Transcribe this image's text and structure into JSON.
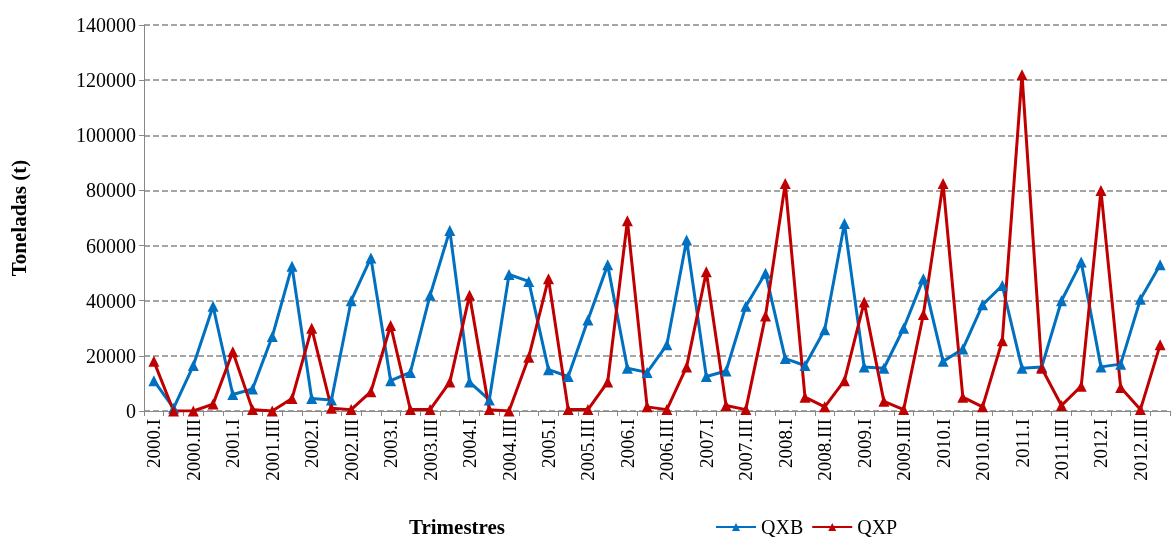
{
  "chart_data": {
    "type": "line",
    "xlabel": "Trimestres",
    "ylabel": "Toneladas (t)",
    "categories": [
      "2000.I",
      null,
      "2000.III",
      null,
      "2001.I",
      null,
      "2001.III",
      null,
      "2002.I",
      null,
      "2002.III",
      null,
      "2003.I",
      null,
      "2003.III",
      null,
      "2004.I",
      null,
      "2004.III",
      null,
      "2005.I",
      null,
      "2005.III",
      null,
      "2006.I",
      null,
      "2006.III",
      null,
      "2007.I",
      null,
      "2007.III",
      null,
      "2008.I",
      null,
      "2008.III",
      null,
      "2009.I",
      null,
      "2009.III",
      null,
      "2010.I",
      null,
      "2010.III",
      null,
      "2011.I",
      null,
      "2011.III",
      null,
      "2012.I",
      null,
      "2012.III",
      null
    ],
    "series": [
      {
        "name": "QXB",
        "color": "#0070c0",
        "values": [
          11000,
          1000,
          16500,
          38000,
          6000,
          8000,
          27000,
          52500,
          4500,
          4000,
          40000,
          55500,
          11000,
          14000,
          42000,
          65500,
          10500,
          4000,
          49500,
          47000,
          15000,
          12500,
          33000,
          53000,
          15500,
          14000,
          24000,
          62000,
          12500,
          14500,
          38000,
          50000,
          19000,
          16500,
          29500,
          68000,
          16000,
          15500,
          30000,
          48000,
          18000,
          22500,
          38500,
          45500,
          15500,
          16000,
          40000,
          54000,
          16000,
          17000,
          40500,
          53000
        ]
      },
      {
        "name": "QXP",
        "color": "#c00000",
        "values": [
          18000,
          0,
          0,
          2500,
          21500,
          500,
          0,
          4500,
          30000,
          1000,
          500,
          7000,
          31000,
          500,
          500,
          10500,
          42000,
          500,
          0,
          19500,
          48000,
          500,
          500,
          10500,
          69000,
          1500,
          500,
          16000,
          50500,
          2000,
          500,
          34500,
          82500,
          5000,
          1500,
          11000,
          39500,
          3500,
          500,
          35000,
          82500,
          5000,
          1500,
          25500,
          122000,
          15500,
          2000,
          9000,
          80000,
          8500,
          500,
          24000
        ]
      }
    ],
    "ylim": [
      0,
      140000
    ],
    "yticks": [
      0,
      20000,
      40000,
      60000,
      80000,
      100000,
      120000,
      140000
    ],
    "grid": "y",
    "legend": "bottom",
    "marker": "triangle",
    "line_style": "solid"
  }
}
